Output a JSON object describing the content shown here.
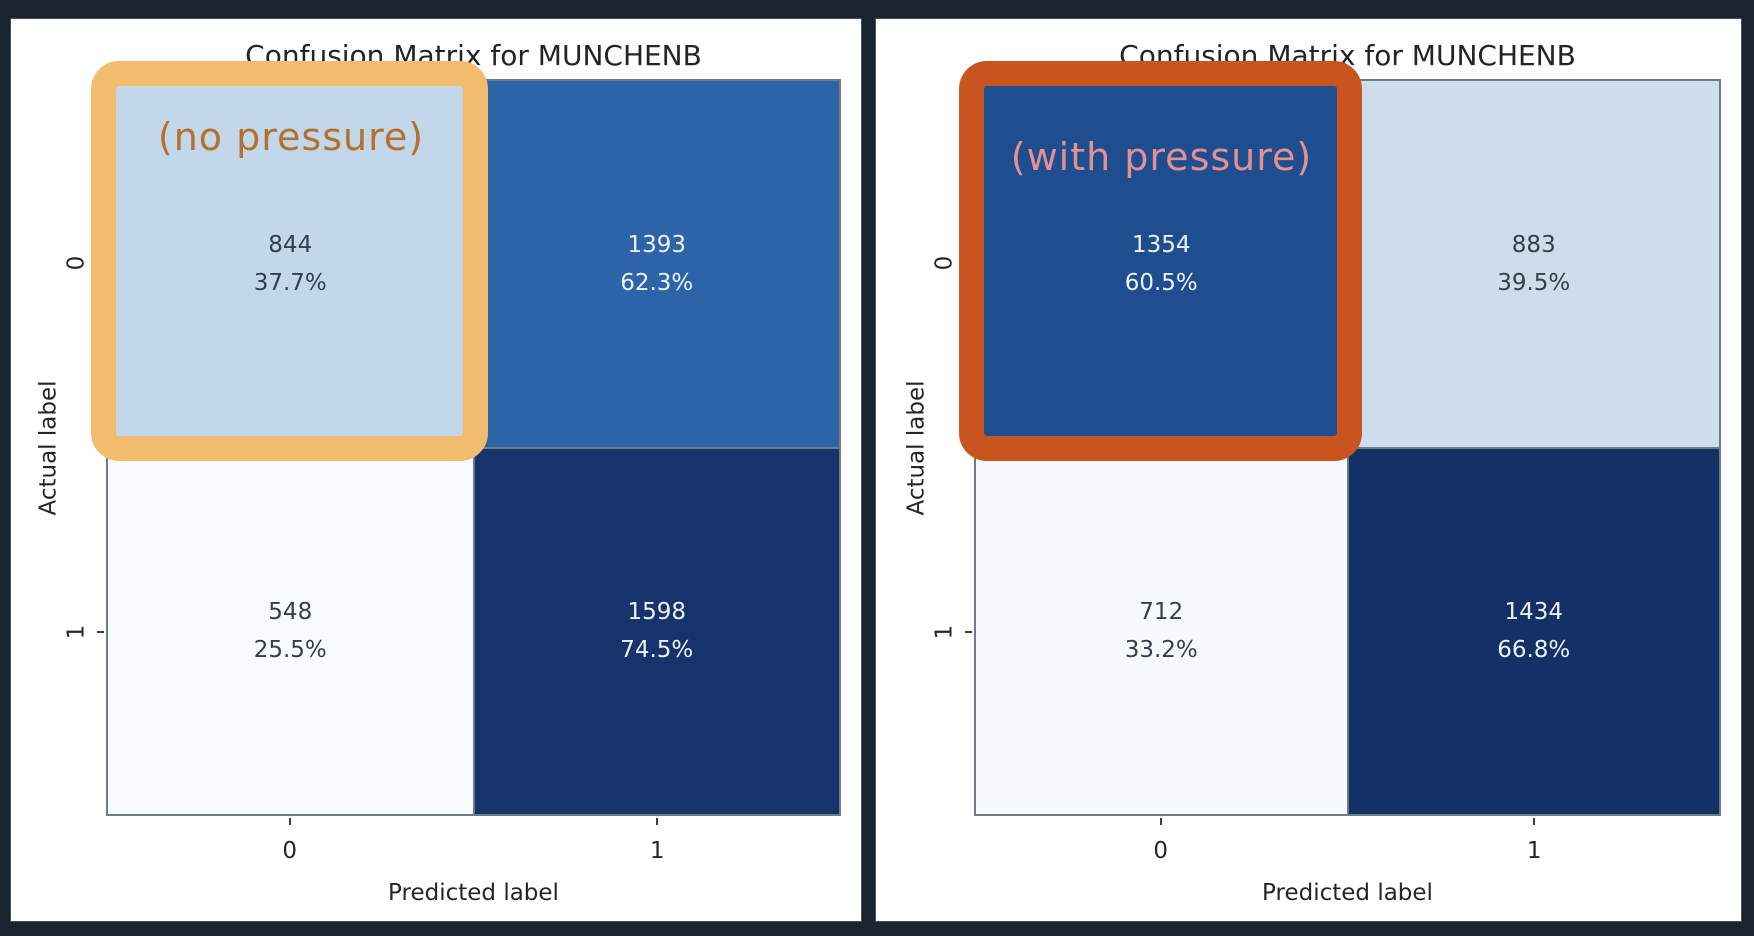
{
  "page": {
    "background_color": "#1b2530"
  },
  "panels": [
    {
      "name": "no_pressure",
      "title": "Confusion Matrix for MUNCHENB",
      "annotation": {
        "label": "(no pressure)",
        "text_color": "#b5702c",
        "box_color": "#f2bc6e"
      },
      "x_axis": {
        "label": "Predicted label",
        "ticks": [
          "0",
          "1"
        ]
      },
      "y_axis": {
        "label": "Actual label",
        "ticks": [
          "0",
          "1"
        ]
      },
      "cells": [
        {
          "count": "844",
          "percent": "37.7%",
          "bg": "#c3d7eb",
          "fg": "#343f4b"
        },
        {
          "count": "1393",
          "percent": "62.3%",
          "bg": "#2d64a7",
          "fg": "#edf2f8"
        },
        {
          "count": "548",
          "percent": "25.5%",
          "bg": "#f8fafd",
          "fg": "#343f4b"
        },
        {
          "count": "1598",
          "percent": "74.5%",
          "bg": "#16336b",
          "fg": "#edf2f8"
        }
      ]
    },
    {
      "name": "with_pressure",
      "title": "Confusion Matrix for MUNCHENB",
      "annotation": {
        "label": "(with pressure)",
        "text_color": "#e29090",
        "box_color": "#c95420"
      },
      "x_axis": {
        "label": "Predicted label",
        "ticks": [
          "0",
          "1"
        ]
      },
      "y_axis": {
        "label": "Actual label",
        "ticks": [
          "0",
          "1"
        ]
      },
      "cells": [
        {
          "count": "1354",
          "percent": "60.5%",
          "bg": "#1f4e90",
          "fg": "#edf2f8"
        },
        {
          "count": "883",
          "percent": "39.5%",
          "bg": "#cdddec",
          "fg": "#343f4b"
        },
        {
          "count": "712",
          "percent": "33.2%",
          "bg": "#f7fafd",
          "fg": "#343f4b"
        },
        {
          "count": "1434",
          "percent": "66.8%",
          "bg": "#143165",
          "fg": "#edf2f8"
        }
      ]
    }
  ],
  "chart_data": [
    {
      "type": "heatmap",
      "title": "Confusion Matrix for MUNCHENB",
      "variant_annotation": "(no pressure)",
      "xlabel": "Predicted label",
      "ylabel": "Actual label",
      "x_categories": [
        "0",
        "1"
      ],
      "y_categories": [
        "0",
        "1"
      ],
      "counts": [
        [
          844,
          1393
        ],
        [
          548,
          1598
        ]
      ],
      "row_percents": [
        [
          37.7,
          62.3
        ],
        [
          25.5,
          74.5
        ]
      ],
      "highlighted_cell": {
        "row": 0,
        "col": 0,
        "box_color": "#f2bc6e"
      },
      "colormap": "Blues",
      "grid": true,
      "legend": false
    },
    {
      "type": "heatmap",
      "title": "Confusion Matrix for MUNCHENB",
      "variant_annotation": "(with pressure)",
      "xlabel": "Predicted label",
      "ylabel": "Actual label",
      "x_categories": [
        "0",
        "1"
      ],
      "y_categories": [
        "0",
        "1"
      ],
      "counts": [
        [
          1354,
          883
        ],
        [
          712,
          1434
        ]
      ],
      "row_percents": [
        [
          60.5,
          39.5
        ],
        [
          33.2,
          66.8
        ]
      ],
      "highlighted_cell": {
        "row": 0,
        "col": 0,
        "box_color": "#c95420"
      },
      "colormap": "Blues",
      "grid": true,
      "legend": false
    }
  ]
}
